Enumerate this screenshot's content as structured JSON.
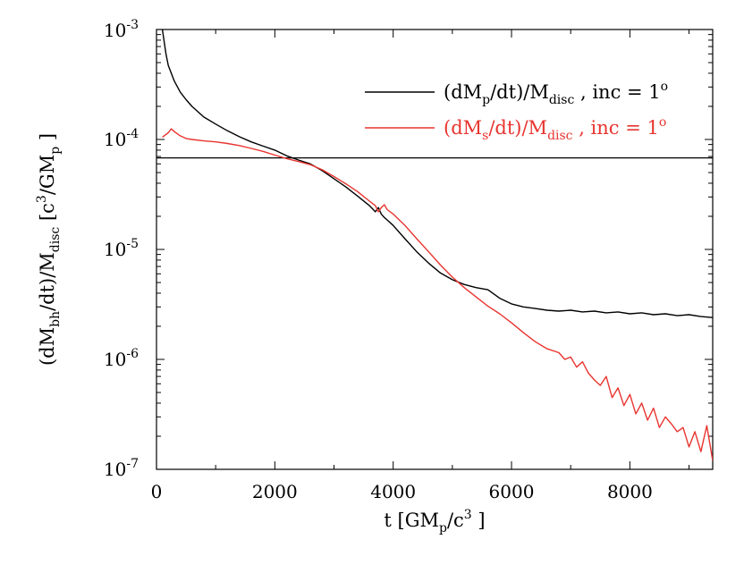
{
  "chart_data": {
    "type": "line",
    "title": "",
    "xlabel": "t [GM_p/c^3]",
    "ylabel": "(dM_bh/dt)/M_disc [c^3/GM_p]",
    "xlim": [
      0,
      9400
    ],
    "ylim": [
      1e-07,
      0.001
    ],
    "yscale": "log",
    "x_ticks": [
      0,
      2000,
      4000,
      6000,
      8000
    ],
    "x_tick_labels": [
      "0",
      "2000",
      "4000",
      "6000",
      "8000"
    ],
    "y_ticks": [
      1e-07,
      1e-06,
      1e-05,
      0.0001,
      0.001
    ],
    "y_tick_labels": [
      {
        "base": "10",
        "exp": "-7"
      },
      {
        "base": "10",
        "exp": "-6"
      },
      {
        "base": "10",
        "exp": "-5"
      },
      {
        "base": "10",
        "exp": "-4"
      },
      {
        "base": "10",
        "exp": "-3"
      }
    ],
    "legend_position": "top-right",
    "reference_line": {
      "y": 6.8e-05,
      "color": "#000000"
    },
    "series": [
      {
        "name": "(dMp/dt)/Mdisc , inc = 1°",
        "legend": {
          "pre": "(dM",
          "sub1": "p",
          "mid": "/dt)/M",
          "sub2": "disc",
          "post": " , inc = 1",
          "sup": "o"
        },
        "color": "#000000",
        "x": [
          100,
          160,
          200,
          300,
          400,
          500,
          600,
          800,
          1000,
          1200,
          1400,
          1600,
          1800,
          2000,
          2200,
          2400,
          2600,
          2800,
          3000,
          3200,
          3400,
          3600,
          3700,
          3750,
          3800,
          3850,
          3900,
          4000,
          4200,
          4400,
          4600,
          4800,
          5000,
          5200,
          5400,
          5600,
          5800,
          6000,
          6200,
          6400,
          6600,
          6800,
          7000,
          7200,
          7400,
          7600,
          7800,
          8000,
          8200,
          8400,
          8600,
          8800,
          9000,
          9200,
          9400
        ],
        "y": [
          0.001,
          0.0006,
          0.00047,
          0.00034,
          0.00027,
          0.00023,
          0.0002,
          0.00016,
          0.000138,
          0.00012,
          0.000106,
          9.5e-05,
          8.7e-05,
          8e-05,
          7.1e-05,
          6.5e-05,
          6e-05,
          5.2e-05,
          4.4e-05,
          3.7e-05,
          3.05e-05,
          2.5e-05,
          2.2e-05,
          2.4e-05,
          2.1e-05,
          1.95e-05,
          1.85e-05,
          1.65e-05,
          1.25e-05,
          9.5e-06,
          7.5e-06,
          6.1e-06,
          5.3e-06,
          4.8e-06,
          4.5e-06,
          4.3e-06,
          3.6e-06,
          3.2e-06,
          3e-06,
          2.9e-06,
          2.8e-06,
          2.75e-06,
          2.8e-06,
          2.7e-06,
          2.75e-06,
          2.65e-06,
          2.7e-06,
          2.6e-06,
          2.65e-06,
          2.55e-06,
          2.6e-06,
          2.5e-06,
          2.55e-06,
          2.45e-06,
          2.4e-06
        ]
      },
      {
        "name": "(dMs/dt)/Mdisc , inc = 1°",
        "legend": {
          "pre": "(dM",
          "sub1": "s",
          "mid": "/dt)/M",
          "sub2": "disc",
          "post": " , inc = 1",
          "sup": "o"
        },
        "color": "#e8342f",
        "x": [
          100,
          150,
          200,
          250,
          300,
          400,
          500,
          600,
          800,
          1000,
          1200,
          1400,
          1600,
          1800,
          2000,
          2200,
          2400,
          2600,
          2800,
          3000,
          3200,
          3400,
          3600,
          3700,
          3750,
          3800,
          3850,
          3900,
          4000,
          4200,
          4400,
          4600,
          4800,
          5000,
          5200,
          5400,
          5600,
          5800,
          6000,
          6200,
          6400,
          6600,
          6800,
          6900,
          7000,
          7100,
          7200,
          7300,
          7400,
          7500,
          7600,
          7700,
          7800,
          7900,
          8000,
          8100,
          8200,
          8300,
          8400,
          8500,
          8600,
          8700,
          8800,
          8900,
          9000,
          9100,
          9200,
          9300,
          9400
        ],
        "y": [
          0.000105,
          0.00011,
          0.000115,
          0.000125,
          0.000118,
          0.000108,
          0.000102,
          0.0001,
          9.7e-05,
          9.5e-05,
          9.2e-05,
          8.8e-05,
          8.3e-05,
          7.8e-05,
          7.2e-05,
          6.7e-05,
          6.3e-05,
          5.9e-05,
          5.3e-05,
          4.6e-05,
          3.95e-05,
          3.35e-05,
          2.75e-05,
          2.5e-05,
          2.2e-05,
          2.4e-05,
          2.55e-05,
          2.3e-05,
          2.1e-05,
          1.65e-05,
          1.25e-05,
          9.5e-06,
          7.2e-06,
          5.6e-06,
          4.5e-06,
          3.7e-06,
          3.05e-06,
          2.6e-06,
          2.15e-06,
          1.75e-06,
          1.45e-06,
          1.25e-06,
          1.15e-06,
          1e-06,
          1.05e-06,
          8.5e-07,
          9.5e-07,
          7.5e-07,
          6.5e-07,
          5.8e-07,
          7e-07,
          4.5e-07,
          5.5e-07,
          3.8e-07,
          4.8e-07,
          3.2e-07,
          4e-07,
          2.8e-07,
          3.6e-07,
          2.4e-07,
          3e-07,
          2.6e-07,
          2.2e-07,
          2.4e-07,
          1.6e-07,
          2.2e-07,
          1.45e-07,
          2.5e-07,
          1.2e-07
        ]
      }
    ]
  }
}
